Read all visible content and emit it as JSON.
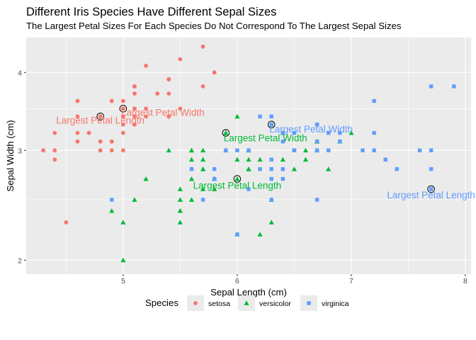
{
  "chart_data": {
    "type": "scatter",
    "title": "Different Iris Species Have Different Sepal Sizes",
    "subtitle": "The Largest Petal Sizes For Each Species Do Not Correspond To The Largest Sepal Sizes",
    "xlabel": "Sepal Length (cm)",
    "ylabel": "Sepal Width (cm)",
    "xlim": [
      4.15,
      8.05
    ],
    "ylim": [
      1.9,
      4.55
    ],
    "y_scale": "log10",
    "x_ticks": [
      5,
      6,
      7,
      8
    ],
    "y_ticks": [
      2,
      3,
      4
    ],
    "legend": {
      "title": "Species",
      "position": "bottom"
    },
    "series": [
      {
        "name": "setosa",
        "color": "#F8766D",
        "shape": "circle",
        "points": [
          [
            5.1,
            3.5
          ],
          [
            4.9,
            3.0
          ],
          [
            4.7,
            3.2
          ],
          [
            4.6,
            3.1
          ],
          [
            5.0,
            3.6
          ],
          [
            5.4,
            3.9
          ],
          [
            4.6,
            3.4
          ],
          [
            5.0,
            3.4
          ],
          [
            4.4,
            2.9
          ],
          [
            4.9,
            3.1
          ],
          [
            5.4,
            3.7
          ],
          [
            4.8,
            3.4
          ],
          [
            4.8,
            3.0
          ],
          [
            4.3,
            3.0
          ],
          [
            5.8,
            4.0
          ],
          [
            5.7,
            4.4
          ],
          [
            5.4,
            3.9
          ],
          [
            5.1,
            3.5
          ],
          [
            5.7,
            3.8
          ],
          [
            5.1,
            3.8
          ],
          [
            5.4,
            3.4
          ],
          [
            5.1,
            3.7
          ],
          [
            4.6,
            3.6
          ],
          [
            5.1,
            3.3
          ],
          [
            4.8,
            3.4
          ],
          [
            5.0,
            3.0
          ],
          [
            5.0,
            3.4
          ],
          [
            5.2,
            3.5
          ],
          [
            5.2,
            3.4
          ],
          [
            4.7,
            3.2
          ],
          [
            4.8,
            3.1
          ],
          [
            5.4,
            3.4
          ],
          [
            5.2,
            4.1
          ],
          [
            5.5,
            4.2
          ],
          [
            4.9,
            3.1
          ],
          [
            5.0,
            3.2
          ],
          [
            5.5,
            3.5
          ],
          [
            4.9,
            3.6
          ],
          [
            4.4,
            3.0
          ],
          [
            5.1,
            3.4
          ],
          [
            5.0,
            3.5
          ],
          [
            4.5,
            2.3
          ],
          [
            4.4,
            3.2
          ],
          [
            5.0,
            3.5
          ],
          [
            5.1,
            3.8
          ],
          [
            4.8,
            3.0
          ],
          [
            5.1,
            3.8
          ],
          [
            4.6,
            3.2
          ],
          [
            5.3,
            3.7
          ],
          [
            5.0,
            3.3
          ]
        ]
      },
      {
        "name": "versicolor",
        "color": "#00BA38",
        "shape": "triangle",
        "points": [
          [
            7.0,
            3.2
          ],
          [
            6.4,
            3.2
          ],
          [
            6.9,
            3.1
          ],
          [
            5.5,
            2.3
          ],
          [
            6.5,
            2.8
          ],
          [
            5.7,
            2.8
          ],
          [
            6.3,
            3.3
          ],
          [
            4.9,
            2.4
          ],
          [
            6.6,
            2.9
          ],
          [
            5.2,
            2.7
          ],
          [
            5.0,
            2.0
          ],
          [
            5.9,
            3.0
          ],
          [
            6.0,
            2.2
          ],
          [
            6.1,
            2.9
          ],
          [
            5.6,
            2.9
          ],
          [
            6.7,
            3.1
          ],
          [
            5.6,
            3.0
          ],
          [
            5.8,
            2.7
          ],
          [
            6.2,
            2.2
          ],
          [
            5.6,
            2.5
          ],
          [
            5.9,
            3.2
          ],
          [
            6.1,
            2.8
          ],
          [
            6.3,
            2.5
          ],
          [
            6.1,
            2.8
          ],
          [
            6.4,
            2.9
          ],
          [
            6.6,
            3.0
          ],
          [
            6.8,
            2.8
          ],
          [
            6.7,
            3.0
          ],
          [
            6.0,
            2.9
          ],
          [
            5.7,
            2.6
          ],
          [
            5.5,
            2.4
          ],
          [
            5.5,
            2.4
          ],
          [
            5.8,
            2.7
          ],
          [
            6.0,
            2.7
          ],
          [
            5.4,
            3.0
          ],
          [
            6.0,
            3.4
          ],
          [
            6.7,
            3.1
          ],
          [
            6.3,
            2.3
          ],
          [
            5.6,
            3.0
          ],
          [
            5.5,
            2.5
          ],
          [
            5.5,
            2.6
          ],
          [
            6.1,
            3.0
          ],
          [
            5.8,
            2.6
          ],
          [
            5.0,
            2.3
          ],
          [
            5.6,
            2.7
          ],
          [
            5.7,
            3.0
          ],
          [
            5.7,
            2.9
          ],
          [
            6.2,
            2.9
          ],
          [
            5.1,
            2.5
          ],
          [
            5.7,
            2.8
          ]
        ]
      },
      {
        "name": "virginica",
        "color": "#619CFF",
        "shape": "square",
        "points": [
          [
            6.3,
            3.3
          ],
          [
            5.8,
            2.7
          ],
          [
            7.1,
            3.0
          ],
          [
            6.3,
            2.9
          ],
          [
            6.5,
            3.0
          ],
          [
            7.6,
            3.0
          ],
          [
            4.9,
            2.5
          ],
          [
            7.3,
            2.9
          ],
          [
            6.7,
            2.5
          ],
          [
            7.2,
            3.6
          ],
          [
            6.5,
            3.2
          ],
          [
            6.4,
            2.7
          ],
          [
            6.8,
            3.0
          ],
          [
            5.7,
            2.5
          ],
          [
            5.8,
            2.8
          ],
          [
            6.4,
            3.2
          ],
          [
            6.5,
            3.0
          ],
          [
            7.7,
            3.8
          ],
          [
            7.7,
            2.6
          ],
          [
            6.0,
            2.2
          ],
          [
            6.9,
            3.2
          ],
          [
            5.6,
            2.8
          ],
          [
            7.7,
            2.8
          ],
          [
            6.3,
            2.7
          ],
          [
            6.7,
            3.3
          ],
          [
            7.2,
            3.2
          ],
          [
            6.2,
            2.8
          ],
          [
            6.1,
            3.0
          ],
          [
            6.4,
            2.8
          ],
          [
            7.2,
            3.0
          ],
          [
            7.4,
            2.8
          ],
          [
            7.9,
            3.8
          ],
          [
            6.4,
            2.8
          ],
          [
            6.3,
            2.8
          ],
          [
            6.1,
            2.6
          ],
          [
            7.7,
            3.0
          ],
          [
            6.3,
            3.4
          ],
          [
            6.4,
            3.1
          ],
          [
            6.0,
            3.0
          ],
          [
            6.9,
            3.1
          ],
          [
            6.7,
            3.1
          ],
          [
            6.9,
            3.1
          ],
          [
            5.8,
            2.7
          ],
          [
            6.8,
            3.2
          ],
          [
            6.7,
            3.3
          ],
          [
            6.7,
            3.0
          ],
          [
            6.3,
            2.5
          ],
          [
            6.5,
            3.0
          ],
          [
            6.2,
            3.4
          ],
          [
            5.9,
            3.0
          ]
        ]
      }
    ],
    "highlights": [
      {
        "x": 4.8,
        "y": 3.4
      },
      {
        "x": 5.0,
        "y": 3.5
      },
      {
        "x": 5.9,
        "y": 3.2
      },
      {
        "x": 6.0,
        "y": 2.7
      },
      {
        "x": 6.3,
        "y": 3.3
      },
      {
        "x": 7.7,
        "y": 2.6
      }
    ],
    "annotations": [
      {
        "label": "Largest Petal Length",
        "series": "setosa",
        "x": 4.8,
        "y": 3.4,
        "anchor": "center",
        "dy": 10
      },
      {
        "label": "Largest Petal Width",
        "series": "setosa",
        "x": 5.0,
        "y": 3.5,
        "anchor": "start",
        "dy": 10
      },
      {
        "label": "Largest Petal Width",
        "series": "versicolor",
        "x": 5.9,
        "y": 3.2,
        "anchor": "start",
        "dy": 12
      },
      {
        "label": "Largest Petal Length",
        "series": "versicolor",
        "x": 6.0,
        "y": 2.7,
        "anchor": "middle",
        "dy": 14
      },
      {
        "label": "Largest Petal Width",
        "series": "virginica",
        "x": 6.3,
        "y": 3.3,
        "anchor": "start",
        "dy": 11
      },
      {
        "label": "Largest Petal Length",
        "series": "virginica",
        "x": 7.7,
        "y": 2.6,
        "anchor": "middle",
        "dy": 13
      }
    ]
  }
}
